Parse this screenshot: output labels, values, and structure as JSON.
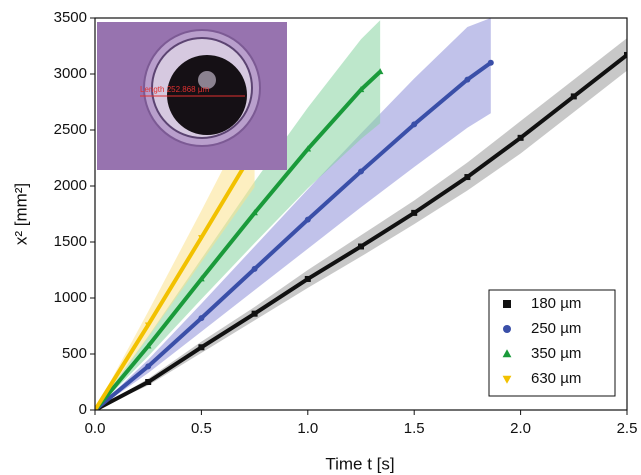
{
  "chart_data": {
    "type": "line",
    "x_label": "Time t [s]",
    "y_label": "x² [mm²]",
    "inset_annotation": "Length 252.868 µm",
    "xlim": [
      0,
      2.5
    ],
    "ylim": [
      0,
      3500
    ],
    "xticks": [
      {
        "value": 0,
        "label": "0.0"
      },
      0.5,
      {
        "value": 1,
        "label": "1.0"
      },
      1.5,
      {
        "value": 2,
        "label": "2.0"
      },
      2.5
    ],
    "yticks": [
      0,
      500,
      1000,
      1500,
      2000,
      2500,
      3000,
      3500
    ],
    "legend": "lower-right",
    "series": [
      {
        "name": "180 µm",
        "color": "#111111",
        "band_color": "#9a9a9a",
        "marker": "square",
        "x": [
          0,
          0.25,
          0.5,
          0.75,
          1,
          1.25,
          1.5,
          1.75,
          2,
          2.25,
          2.5
        ],
        "values": [
          0,
          250,
          560,
          860,
          1170,
          1460,
          1760,
          2080,
          2430,
          2800,
          3170
        ],
        "lower": [
          0,
          220,
          510,
          800,
          1090,
          1370,
          1660,
          1960,
          2290,
          2660,
          3030
        ],
        "upper": [
          0,
          280,
          610,
          920,
          1250,
          1560,
          1870,
          2210,
          2580,
          2950,
          3320
        ]
      },
      {
        "name": "250 µm",
        "color": "#3a4fa8",
        "band_color": "#8e90d8",
        "marker": "circle",
        "x": [
          0,
          0.25,
          0.5,
          0.75,
          1,
          1.25,
          1.5,
          1.75,
          1.86
        ],
        "values": [
          0,
          390,
          820,
          1260,
          1700,
          2130,
          2550,
          2950,
          3100
        ],
        "lower": [
          0,
          330,
          700,
          1070,
          1440,
          1810,
          2170,
          2520,
          2650
        ],
        "upper": [
          0,
          450,
          950,
          1460,
          1970,
          2470,
          2960,
          3420,
          3500
        ]
      },
      {
        "name": "350 µm",
        "color": "#1a9a3a",
        "band_color": "#86d3a0",
        "marker": "triangle-up",
        "x": [
          0,
          0.25,
          0.5,
          0.75,
          1,
          1.25,
          1.34
        ],
        "values": [
          0,
          570,
          1170,
          1760,
          2330,
          2860,
          3020
        ],
        "lower": [
          0,
          480,
          990,
          1490,
          1980,
          2420,
          2560
        ],
        "upper": [
          0,
          660,
          1350,
          2040,
          2700,
          3310,
          3480
        ]
      },
      {
        "name": "630 µm",
        "color": "#f2c100",
        "band_color": "#fbe28e",
        "marker": "triangle-down",
        "x": [
          0,
          0.25,
          0.5,
          0.75
        ],
        "values": [
          0,
          760,
          1540,
          2330
        ],
        "lower": [
          0,
          650,
          1320,
          1990
        ],
        "upper": [
          0,
          880,
          1780,
          2700
        ]
      }
    ]
  }
}
